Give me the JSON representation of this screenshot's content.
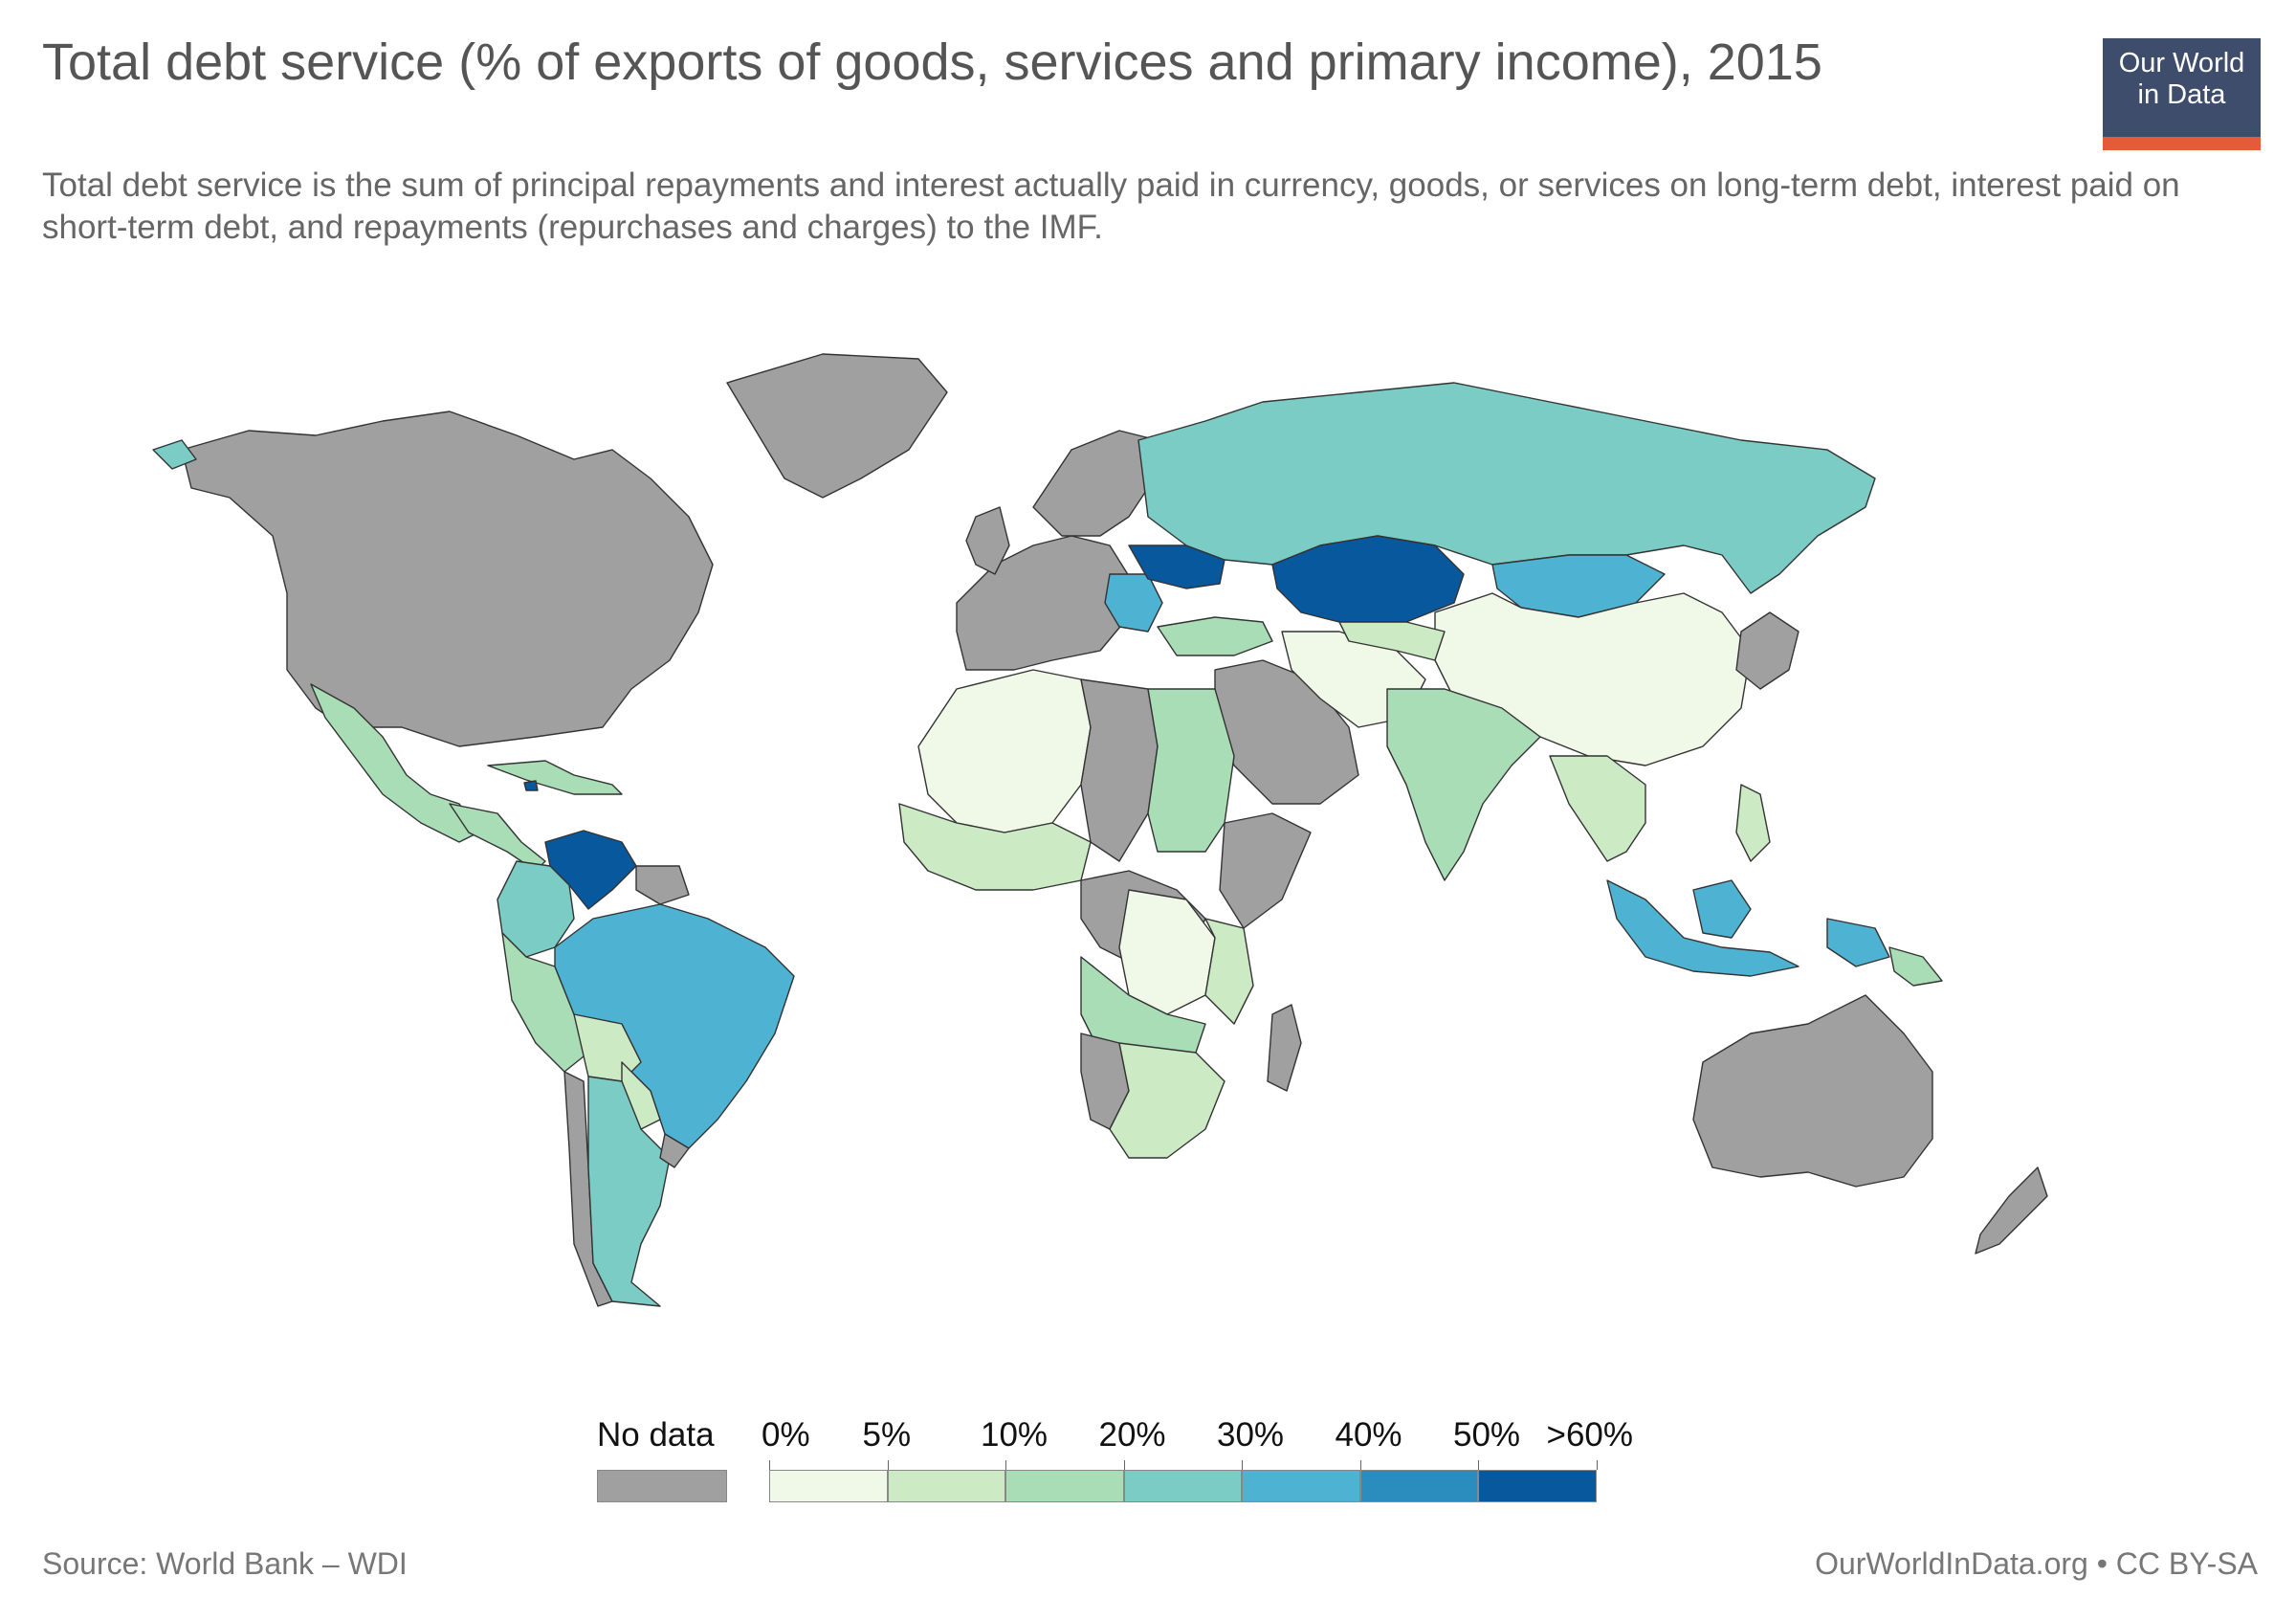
{
  "title": "Total debt service (% of exports of goods, services and primary income), 2015",
  "subtitle": "Total debt service is the sum of principal repayments and interest actually paid in currency, goods, or services on long-term debt, interest paid on short-term debt, and repayments (repurchases and charges) to the IMF.",
  "logo": {
    "line1": "Our World",
    "line2": "in Data"
  },
  "legend": {
    "no_data_label": "No data",
    "no_data_color": "#a0a0a0",
    "bins": [
      {
        "label": "0%",
        "color": "#f0f9e8"
      },
      {
        "label": "5%",
        "color": "#ccebc5"
      },
      {
        "label": "10%",
        "color": "#a8ddb5"
      },
      {
        "label": "20%",
        "color": "#7bccc4"
      },
      {
        "label": "30%",
        "color": "#4eb3d3"
      },
      {
        "label": "40%",
        "color": "#2b8cbe"
      },
      {
        "label": "50%",
        "color": "#08589e"
      }
    ],
    "last_label": ">60%"
  },
  "footer": {
    "source": "Source: World Bank – WDI",
    "credit": "OurWorldInData.org • CC BY-SA"
  },
  "colors": {
    "nodata": "#a0a0a0",
    "b0": "#f0f9e8",
    "b5": "#ccebc5",
    "b10": "#a8ddb5",
    "b20": "#7bccc4",
    "b30": "#4eb3d3",
    "b40": "#2b8cbe",
    "b50": "#08589e"
  }
}
